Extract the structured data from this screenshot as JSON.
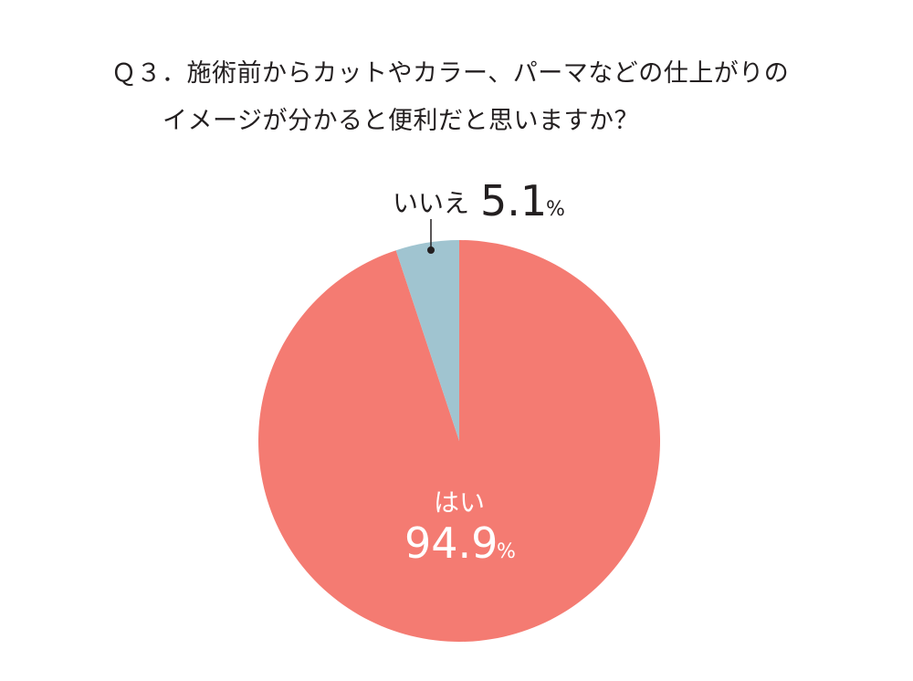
{
  "chart_data": {
    "type": "pie",
    "title_lines": [
      "Ｑ３．施術前からカットやカラー、パーマなどの仕上がりの",
      "イメージが分かると便利だと思いますか？"
    ],
    "slices": [
      {
        "label": "はい",
        "value": 94.9,
        "display": "94.9",
        "unit": "%",
        "color": "#f47b72"
      },
      {
        "label": "いいえ",
        "value": 5.1,
        "display": "5.1",
        "unit": "%",
        "color": "#a0c4d0"
      }
    ],
    "start_angle_deg": 0,
    "direction": "clockwise"
  }
}
